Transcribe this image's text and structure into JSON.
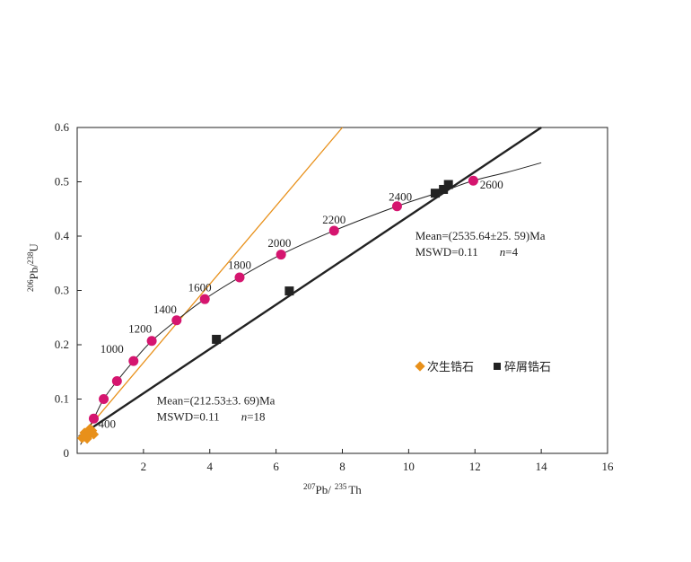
{
  "chart_data": {
    "type": "scatter",
    "xlabel": {
      "sup1": "207",
      "base1": "Pb/",
      "sup2": "235",
      "base2": "Th"
    },
    "ylabel": {
      "sup1": "206",
      "base1": "Pb/",
      "sup2": "238",
      "base2": "U"
    },
    "xlim": [
      0,
      16
    ],
    "ylim": [
      0,
      0.6
    ],
    "xticks": [
      2,
      4,
      6,
      8,
      10,
      12,
      14,
      16
    ],
    "yticks": [
      0,
      0.1,
      0.2,
      0.3,
      0.4,
      0.5,
      0.6
    ],
    "xtick_labels": [
      "2",
      "4",
      "6",
      "8",
      "10",
      "12",
      "14",
      "16"
    ],
    "ytick_labels": [
      "0",
      "0.1",
      "0.2",
      "0.3",
      "0.4",
      "0.5",
      "0.6"
    ],
    "concordia": {
      "color": "#222222",
      "points": [
        {
          "x": 0.1,
          "y": 0.016
        },
        {
          "x": 0.5,
          "y": 0.064
        },
        {
          "x": 0.8,
          "y": 0.1
        },
        {
          "x": 1.2,
          "y": 0.133
        },
        {
          "x": 1.7,
          "y": 0.17
        },
        {
          "x": 2.25,
          "y": 0.207
        },
        {
          "x": 3.0,
          "y": 0.245
        },
        {
          "x": 3.85,
          "y": 0.284
        },
        {
          "x": 4.9,
          "y": 0.324
        },
        {
          "x": 6.15,
          "y": 0.366
        },
        {
          "x": 7.75,
          "y": 0.41
        },
        {
          "x": 9.65,
          "y": 0.455
        },
        {
          "x": 11.0,
          "y": 0.482
        },
        {
          "x": 11.95,
          "y": 0.502
        },
        {
          "x": 13.0,
          "y": 0.518
        },
        {
          "x": 14.0,
          "y": 0.535
        }
      ]
    },
    "age_markers": {
      "color": "#d5156f",
      "points": [
        {
          "x": 0.5,
          "y": 0.064
        },
        {
          "x": 0.8,
          "y": 0.1
        },
        {
          "x": 1.2,
          "y": 0.133
        },
        {
          "x": 1.7,
          "y": 0.17
        },
        {
          "x": 2.25,
          "y": 0.207
        },
        {
          "x": 3.0,
          "y": 0.245
        },
        {
          "x": 3.85,
          "y": 0.284
        },
        {
          "x": 4.9,
          "y": 0.324
        },
        {
          "x": 6.15,
          "y": 0.366
        },
        {
          "x": 7.75,
          "y": 0.41
        },
        {
          "x": 9.65,
          "y": 0.455
        },
        {
          "x": 11.95,
          "y": 0.502
        }
      ]
    },
    "age_labels": [
      {
        "text": "400",
        "x": 0.9,
        "y": 0.047
      },
      {
        "text": "1000",
        "x": 1.05,
        "y": 0.185
      },
      {
        "text": "1200",
        "x": 1.9,
        "y": 0.222
      },
      {
        "text": "1400",
        "x": 2.65,
        "y": 0.258
      },
      {
        "text": "1600",
        "x": 3.7,
        "y": 0.298
      },
      {
        "text": "1800",
        "x": 4.9,
        "y": 0.34
      },
      {
        "text": "2000",
        "x": 6.1,
        "y": 0.38
      },
      {
        "text": "2200",
        "x": 7.75,
        "y": 0.423
      },
      {
        "text": "2400",
        "x": 9.75,
        "y": 0.465
      },
      {
        "text": "2600",
        "x": 12.5,
        "y": 0.488
      }
    ],
    "series": [
      {
        "name": "次生锆石",
        "color": "#e8901a",
        "marker": "diamond",
        "points": [
          {
            "x": 0.15,
            "y": 0.028
          },
          {
            "x": 0.2,
            "y": 0.032
          },
          {
            "x": 0.25,
            "y": 0.03
          },
          {
            "x": 0.28,
            "y": 0.036
          },
          {
            "x": 0.3,
            "y": 0.027
          },
          {
            "x": 0.32,
            "y": 0.04
          },
          {
            "x": 0.35,
            "y": 0.033
          },
          {
            "x": 0.38,
            "y": 0.045
          },
          {
            "x": 0.42,
            "y": 0.038
          },
          {
            "x": 0.45,
            "y": 0.042
          },
          {
            "x": 0.5,
            "y": 0.035
          },
          {
            "x": 0.22,
            "y": 0.038
          }
        ]
      },
      {
        "name": "碎屑锆石",
        "color": "#222222",
        "marker": "square",
        "points": [
          {
            "x": 4.2,
            "y": 0.21
          },
          {
            "x": 6.4,
            "y": 0.299
          },
          {
            "x": 10.8,
            "y": 0.479
          },
          {
            "x": 11.05,
            "y": 0.486
          },
          {
            "x": 11.2,
            "y": 0.495
          }
        ]
      }
    ],
    "discordia_lines": [
      {
        "color": "#222222",
        "x1": 0.05,
        "y1": 0.031,
        "x2": 14.0,
        "y2": 0.6
      },
      {
        "color": "#e8901a",
        "x1": 0.1,
        "y1": 0.03,
        "x2": 8.0,
        "y2": 0.6
      }
    ],
    "annotations": [
      {
        "line1_label": "Mean=(2535.64±25. 59)Ma",
        "line2_label": "MSWD=0.11",
        "n_label": "n",
        "n_value": "=4",
        "x": 10.2,
        "y": 0.393
      },
      {
        "line1_label": "Mean=(212.53±3. 69)Ma",
        "line2_label": "MSWD=0.11",
        "n_label": "n",
        "n_value": "=18",
        "x": 2.4,
        "y": 0.09
      }
    ],
    "legend_position": "middle-right",
    "grid": false
  }
}
